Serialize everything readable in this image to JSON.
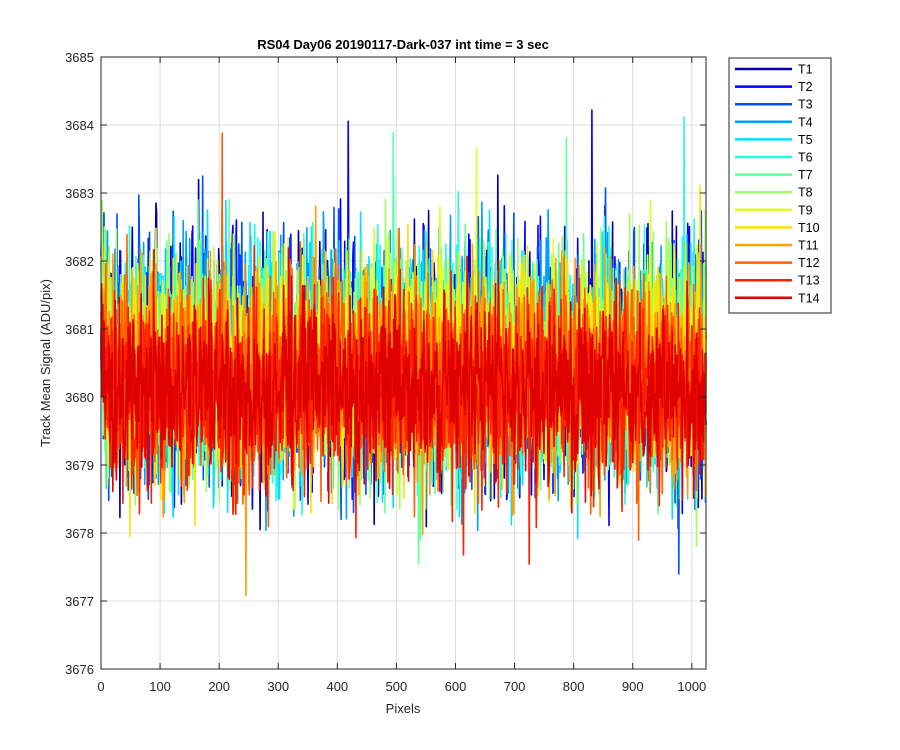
{
  "chart_data": {
    "type": "line",
    "title": "RS04 Day06 20190117-Dark-037 int time = 3 sec",
    "xlabel": "Pixels",
    "ylabel": "Track Mean Signal (ADU/pix)",
    "xlim": [
      0,
      1024
    ],
    "ylim": [
      3676,
      3685
    ],
    "xticks": [
      0,
      100,
      200,
      300,
      400,
      500,
      600,
      700,
      800,
      900,
      1000
    ],
    "yticks": [
      3676,
      3677,
      3678,
      3679,
      3680,
      3681,
      3682,
      3683,
      3684,
      3685
    ],
    "xtick_labels": [
      "0",
      "100",
      "200",
      "300",
      "400",
      "500",
      "600",
      "700",
      "800",
      "900",
      "1000"
    ],
    "ytick_labels": [
      "3676",
      "3677",
      "3678",
      "3679",
      "3680",
      "3681",
      "3682",
      "3683",
      "3684",
      "3685"
    ],
    "grid": true,
    "legend_position": "outside-top-right",
    "n_points_per_series": 1024,
    "series": [
      {
        "name": "T1",
        "color": "#0000AA",
        "mean": 3680.5,
        "spread": 1.25,
        "seed": 11
      },
      {
        "name": "T2",
        "color": "#0000FF",
        "mean": 3680.5,
        "spread": 1.25,
        "seed": 23
      },
      {
        "name": "T3",
        "color": "#0050FF",
        "mean": 3680.5,
        "spread": 1.25,
        "seed": 37
      },
      {
        "name": "T4",
        "color": "#00A0FF",
        "mean": 3680.5,
        "spread": 1.2,
        "seed": 41
      },
      {
        "name": "T5",
        "color": "#00DFFF",
        "mean": 3680.5,
        "spread": 1.2,
        "seed": 53
      },
      {
        "name": "T6",
        "color": "#20FFDF",
        "mean": 3680.5,
        "spread": 1.15,
        "seed": 67
      },
      {
        "name": "T7",
        "color": "#60FFA0",
        "mean": 3680.5,
        "spread": 1.15,
        "seed": 71
      },
      {
        "name": "T8",
        "color": "#A0FF60",
        "mean": 3680.5,
        "spread": 1.15,
        "seed": 83
      },
      {
        "name": "T9",
        "color": "#DFFF20",
        "mean": 3680.5,
        "spread": 1.1,
        "seed": 97
      },
      {
        "name": "T10",
        "color": "#FFE000",
        "mean": 3680.4,
        "spread": 1.1,
        "seed": 101
      },
      {
        "name": "T11",
        "color": "#FFA000",
        "mean": 3680.3,
        "spread": 1.1,
        "seed": 113
      },
      {
        "name": "T12",
        "color": "#FF6000",
        "mean": 3680.2,
        "spread": 1.05,
        "seed": 127
      },
      {
        "name": "T13",
        "color": "#FF2000",
        "mean": 3680.1,
        "spread": 1.0,
        "seed": 131
      },
      {
        "name": "T14",
        "color": "#E00000",
        "mean": 3680.1,
        "spread": 0.95,
        "seed": 149
      }
    ]
  }
}
